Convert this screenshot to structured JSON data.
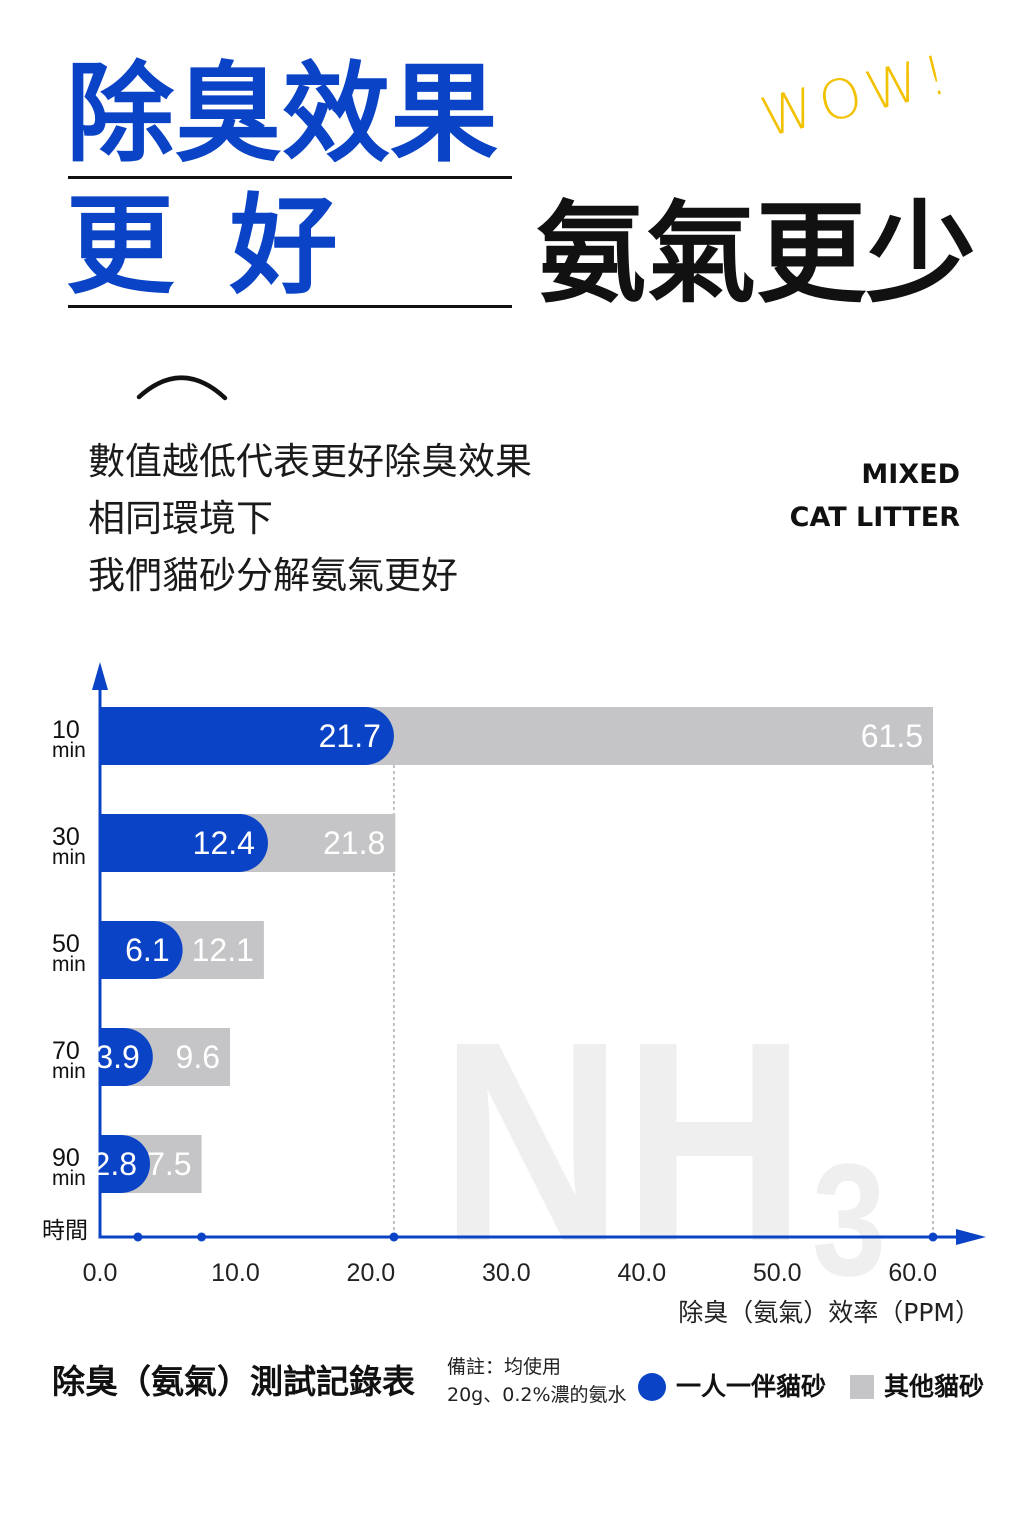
{
  "headline": {
    "line1": "除臭效果",
    "line2": "更 好",
    "right": "氨氣更少",
    "wow": "WOW!"
  },
  "subtitle": [
    "數值越低代表更好除臭效果",
    "相同環境下",
    "我們貓砂分解氨氣更好"
  ],
  "tag": {
    "line1": "MIXED",
    "line2": "CAT LITTER"
  },
  "colors": {
    "brand_blue": "#0a43c6",
    "other_gray": "#c5c5c7",
    "wow_yellow": "#f2c200",
    "watermark_gray": "#efefef"
  },
  "chart_data": {
    "type": "bar",
    "orientation": "horizontal",
    "title": "除臭（氨氣）測試記錄表",
    "categories": [
      "10",
      "30",
      "50",
      "70",
      "90"
    ],
    "category_unit": "min",
    "ylabel": "時間",
    "xlabel": "除臭（氨氣）效率（PPM）",
    "xticks": [
      0,
      10,
      20,
      30,
      40,
      50,
      60
    ],
    "xtick_labels": [
      "0.0",
      "10.0",
      "20.0",
      "30.0",
      "40.0",
      "50.0",
      "60.0"
    ],
    "xlim": [
      0,
      60
    ],
    "series": [
      {
        "name": "一人一伴貓砂",
        "values": [
          21.7,
          12.4,
          6.1,
          3.9,
          2.8
        ],
        "color": "#0a43c6"
      },
      {
        "name": "其他貓砂",
        "values": [
          61.5,
          21.8,
          12.1,
          9.6,
          7.5
        ],
        "color": "#c5c5c7"
      }
    ],
    "note": [
      "備註：均使用",
      "20g、0.2%濃的氨水"
    ],
    "legend_position": "bottom-right",
    "grid": false,
    "watermark": {
      "main": "NH",
      "sub": "3"
    }
  }
}
